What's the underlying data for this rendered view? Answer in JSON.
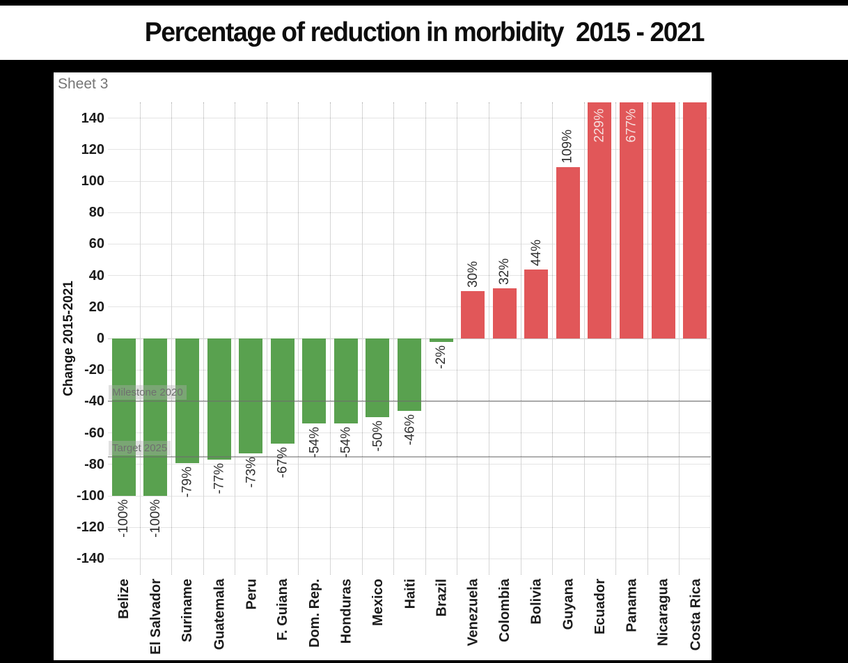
{
  "sheet": {
    "label": "Sheet 3"
  },
  "chart_data": {
    "type": "bar",
    "title": "Percentage of reduction in morbidity  2015 - 2021",
    "ylabel": "Change 2015-2021",
    "ylim": [
      -150,
      150
    ],
    "yticks": [
      140,
      120,
      100,
      80,
      60,
      40,
      20,
      0,
      -20,
      -40,
      -60,
      -80,
      -100,
      -120,
      -140
    ],
    "grid": {
      "horizontal": "solid",
      "vertical": "dotted-between-categories"
    },
    "legend": "none",
    "categories": [
      "Belize",
      "El Salvador",
      "Suriname",
      "Guatemala",
      "Peru",
      "F. Guiana",
      "Dom. Rep.",
      "Honduras",
      "Mexico",
      "Haiti",
      "Brazil",
      "Venezuela",
      "Colombia",
      "Bolivia",
      "Guyana",
      "Ecuador",
      "Panama",
      "Nicaragua",
      "Costa Rica"
    ],
    "bars": [
      {
        "category": "Belize",
        "value": -100,
        "label": "-100%",
        "label_position": "outside",
        "clipped": false
      },
      {
        "category": "El Salvador",
        "value": -100,
        "label": "-100%",
        "label_position": "outside",
        "clipped": false
      },
      {
        "category": "Suriname",
        "value": -79,
        "label": "-79%",
        "label_position": "outside",
        "clipped": false
      },
      {
        "category": "Guatemala",
        "value": -77,
        "label": "-77%",
        "label_position": "outside",
        "clipped": false
      },
      {
        "category": "Peru",
        "value": -73,
        "label": "-73%",
        "label_position": "outside",
        "clipped": false
      },
      {
        "category": "F. Guiana",
        "value": -67,
        "label": "-67%",
        "label_position": "outside",
        "clipped": false
      },
      {
        "category": "Dom. Rep.",
        "value": -54,
        "label": "-54%",
        "label_position": "outside",
        "clipped": false
      },
      {
        "category": "Honduras",
        "value": -54,
        "label": "-54%",
        "label_position": "outside",
        "clipped": false
      },
      {
        "category": "Mexico",
        "value": -50,
        "label": "-50%",
        "label_position": "outside",
        "clipped": false
      },
      {
        "category": "Haiti",
        "value": -46,
        "label": "-46%",
        "label_position": "outside",
        "clipped": false
      },
      {
        "category": "Brazil",
        "value": -2,
        "label": "-2%",
        "label_position": "outside",
        "clipped": false
      },
      {
        "category": "Venezuela",
        "value": 30,
        "label": "30%",
        "label_position": "outside",
        "clipped": false
      },
      {
        "category": "Colombia",
        "value": 32,
        "label": "32%",
        "label_position": "outside",
        "clipped": false
      },
      {
        "category": "Bolivia",
        "value": 44,
        "label": "44%",
        "label_position": "outside",
        "clipped": false
      },
      {
        "category": "Guyana",
        "value": 109,
        "label": "109%",
        "label_position": "outside",
        "clipped": false
      },
      {
        "category": "Ecuador",
        "value": 229,
        "label": "229%",
        "label_position": "inside",
        "clipped": true
      },
      {
        "category": "Panama",
        "value": 677,
        "label": "677%",
        "label_position": "inside",
        "clipped": true
      },
      {
        "category": "Nicaragua",
        "value": null,
        "label": "",
        "label_position": "none",
        "clipped": true
      },
      {
        "category": "Costa Rica",
        "value": null,
        "label": "",
        "label_position": "none",
        "clipped": true
      }
    ],
    "reference_lines": [
      {
        "label": "Milestone 2020",
        "value": -40
      },
      {
        "label": "Target 2025",
        "value": -75
      }
    ],
    "colors": {
      "bar_negative": "#59a14f",
      "bar_positive": "#e15759",
      "inside_label": "#f6dedd",
      "background": "#000000",
      "panel": "#ffffff"
    }
  }
}
